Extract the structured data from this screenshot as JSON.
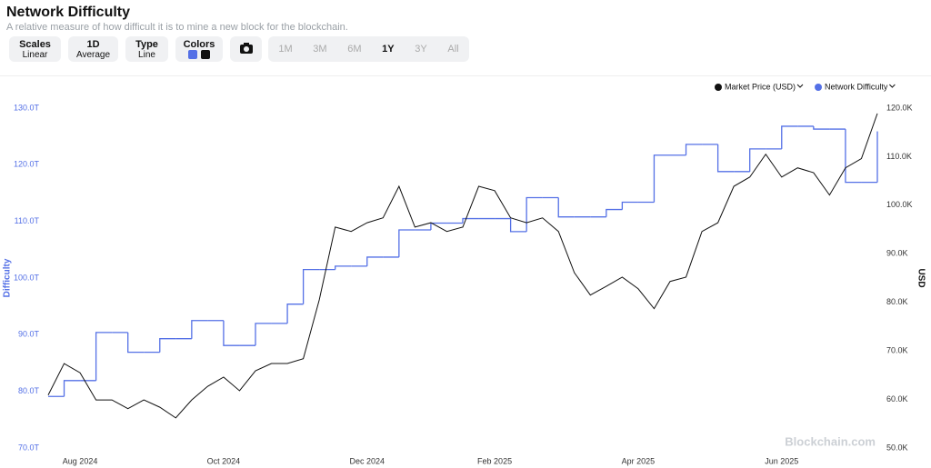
{
  "header": {
    "title": "Network Difficulty",
    "subtitle": "A relative measure of how difficult it is to mine a new block for the blockchain."
  },
  "controls": {
    "scales": {
      "label": "Scales",
      "value": "Linear"
    },
    "interval": {
      "label": "1D",
      "value": "Average"
    },
    "type": {
      "label": "Type",
      "value": "Line"
    },
    "colors": {
      "label": "Colors"
    },
    "ranges": [
      "1M",
      "3M",
      "6M",
      "1Y",
      "3Y",
      "All"
    ],
    "active_range": "1Y"
  },
  "watermark": "Blockchain.com",
  "chart_data": {
    "type": "line",
    "categories": [
      null,
      null,
      "Aug 2024",
      null,
      null,
      null,
      null,
      null,
      null,
      null,
      null,
      "Oct 2024",
      null,
      null,
      null,
      null,
      null,
      null,
      null,
      null,
      "Dec 2024",
      null,
      null,
      null,
      null,
      null,
      null,
      null,
      "Feb 2025",
      null,
      null,
      null,
      null,
      null,
      null,
      null,
      null,
      "Apr 2025",
      null,
      null,
      null,
      null,
      null,
      null,
      null,
      null,
      "Jun 2025",
      null,
      null,
      null,
      null,
      null,
      null
    ],
    "series": [
      {
        "name": "Network Difficulty",
        "color": "#5470e6",
        "step": true,
        "values": [
          79.1,
          81.9,
          81.9,
          90.4,
          90.4,
          86.9,
          86.9,
          89.3,
          89.3,
          92.5,
          92.5,
          88.1,
          88.1,
          92.0,
          92.0,
          95.4,
          101.5,
          101.5,
          102.1,
          102.1,
          103.7,
          103.7,
          108.5,
          108.5,
          109.7,
          109.7,
          110.5,
          110.5,
          110.5,
          108.2,
          114.2,
          114.2,
          110.8,
          110.8,
          110.8,
          112.1,
          113.4,
          113.4,
          121.7,
          121.7,
          123.6,
          123.6,
          118.8,
          118.8,
          122.8,
          122.8,
          126.8,
          126.8,
          126.3,
          126.3,
          116.9,
          116.9,
          125.9
        ]
      },
      {
        "name": "Market Price (USD)",
        "color": "#111111",
        "axis": "y2",
        "values": [
          60.9,
          67.4,
          65.5,
          59.9,
          59.9,
          58.1,
          59.9,
          58.4,
          56.2,
          59.9,
          62.7,
          64.6,
          61.8,
          65.9,
          67.4,
          67.4,
          68.4,
          80.5,
          95.5,
          94.6,
          96.4,
          97.4,
          103.9,
          95.5,
          96.4,
          94.6,
          95.5,
          103.9,
          103.0,
          97.4,
          96.4,
          97.4,
          94.6,
          86.1,
          81.5,
          83.3,
          85.2,
          82.8,
          78.7,
          84.3,
          85.2,
          94.6,
          96.4,
          103.9,
          105.8,
          110.5,
          105.8,
          107.7,
          106.7,
          102.1,
          107.7,
          109.6,
          118.9
        ]
      }
    ],
    "ylabel": "Difficulty",
    "y2label": "USD",
    "ylim": [
      70,
      130
    ],
    "yticks": [
      {
        "value": 70,
        "label": "70.0T"
      },
      {
        "value": 80,
        "label": "80.0T"
      },
      {
        "value": 90,
        "label": "90.0T"
      },
      {
        "value": 100,
        "label": "100.0T"
      },
      {
        "value": 110,
        "label": "110.0T"
      },
      {
        "value": 120,
        "label": "120.0T"
      },
      {
        "value": 130,
        "label": "130.0T"
      }
    ],
    "y2lim": [
      50,
      120
    ],
    "y2ticks": [
      {
        "value": 50,
        "label": "50.0K"
      },
      {
        "value": 60,
        "label": "60.0K"
      },
      {
        "value": 70,
        "label": "70.0K"
      },
      {
        "value": 80,
        "label": "80.0K"
      },
      {
        "value": 90,
        "label": "90.0K"
      },
      {
        "value": 100,
        "label": "100.0K"
      },
      {
        "value": 110,
        "label": "110.0K"
      },
      {
        "value": 120,
        "label": "120.0K"
      }
    ],
    "grid": false
  }
}
